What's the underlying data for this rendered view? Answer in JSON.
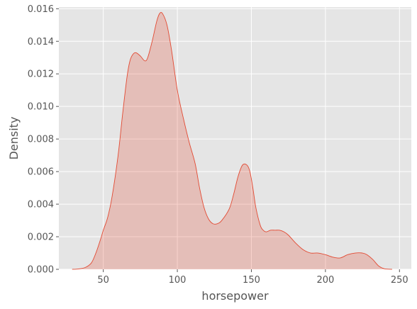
{
  "chart_data": {
    "type": "area",
    "xlabel": "horsepower",
    "ylabel": "Density",
    "xlim": [
      20,
      258
    ],
    "ylim": [
      0,
      0.0161
    ],
    "xticks": [
      50,
      100,
      150,
      200,
      250
    ],
    "yticks": [
      0.0,
      0.002,
      0.004,
      0.006,
      0.008,
      0.01,
      0.012,
      0.014,
      0.016
    ],
    "ytick_labels": [
      "0.000",
      "0.002",
      "0.004",
      "0.006",
      "0.008",
      "0.010",
      "0.012",
      "0.014",
      "0.016"
    ],
    "grid": true,
    "style": {
      "background": "#e5e5e5",
      "grid_color": "#ffffff",
      "line_color": "#e24a33",
      "fill_color": "#e24a33",
      "fill_opacity": 0.25
    },
    "series": [
      {
        "x": [
          29,
          33,
          38,
          42,
          45,
          48,
          50,
          53,
          56,
          60,
          63,
          66,
          68,
          70,
          72,
          75,
          78,
          80,
          83,
          86,
          88,
          90,
          93,
          96,
          100,
          104,
          108,
          112,
          115,
          118,
          121,
          124,
          127,
          130,
          135,
          138,
          141,
          144,
          147,
          149,
          151,
          153,
          156,
          158,
          160,
          163,
          166,
          169,
          172,
          175,
          180,
          185,
          190,
          195,
          200,
          205,
          210,
          215,
          220,
          225,
          228,
          232,
          236,
          240,
          245
        ],
        "y": [
          0.0,
          2e-05,
          0.00012,
          0.0004,
          0.001,
          0.0018,
          0.0024,
          0.0032,
          0.0045,
          0.007,
          0.0095,
          0.0118,
          0.0128,
          0.0132,
          0.0133,
          0.0131,
          0.0128,
          0.013,
          0.014,
          0.0152,
          0.0157,
          0.0157,
          0.015,
          0.0135,
          0.011,
          0.0093,
          0.0078,
          0.0065,
          0.005,
          0.0038,
          0.0031,
          0.0028,
          0.0028,
          0.003,
          0.0037,
          0.0046,
          0.0057,
          0.0064,
          0.0064,
          0.006,
          0.005,
          0.0038,
          0.0027,
          0.0024,
          0.0023,
          0.0024,
          0.0024,
          0.0024,
          0.0023,
          0.0021,
          0.0016,
          0.0012,
          0.001,
          0.001,
          0.0009,
          0.00075,
          0.0007,
          0.0009,
          0.001,
          0.001,
          0.0009,
          0.0006,
          0.0002,
          3e-05,
          0.0
        ]
      }
    ]
  }
}
